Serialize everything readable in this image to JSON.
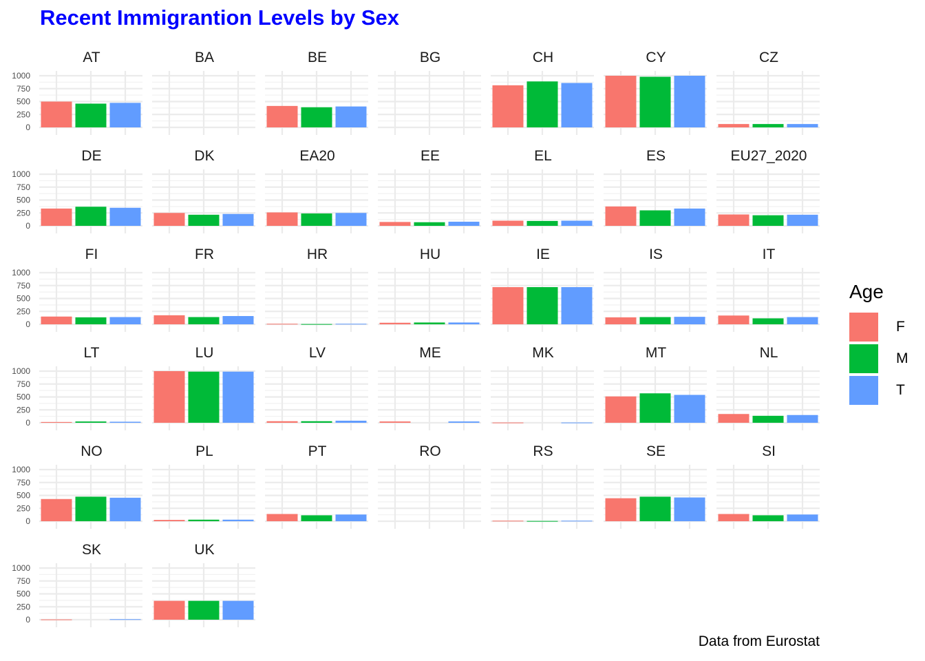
{
  "title": "Recent Immigrantion Levels by Sex",
  "caption": "Data from Eurostat",
  "colors": {
    "F": "#F8766D",
    "M": "#00BA38",
    "T": "#619CFF",
    "title": "#0000ff",
    "grid": "#ebebeb"
  },
  "legend": {
    "title": "Age",
    "items": [
      {
        "key": "F",
        "label": "F"
      },
      {
        "key": "M",
        "label": "M"
      },
      {
        "key": "T",
        "label": "T"
      }
    ]
  },
  "chart_data": {
    "type": "bar",
    "facet": "small-multiples",
    "categories": [
      "F",
      "M",
      "T"
    ],
    "legend_title": "Age",
    "ylim": [
      0,
      1000
    ],
    "yticks": [
      0,
      250,
      500,
      750,
      1000
    ],
    "grid": true,
    "legend_position": "right",
    "panels": [
      {
        "name": "AT",
        "values": [
          500,
          460,
          475
        ]
      },
      {
        "name": "BA",
        "values": [
          0,
          0,
          0
        ]
      },
      {
        "name": "BE",
        "values": [
          415,
          390,
          405
        ]
      },
      {
        "name": "BG",
        "values": [
          0,
          0,
          0
        ]
      },
      {
        "name": "CH",
        "values": [
          815,
          890,
          860
        ]
      },
      {
        "name": "CY",
        "values": [
          1000,
          980,
          1000
        ]
      },
      {
        "name": "CZ",
        "values": [
          65,
          65,
          65
        ]
      },
      {
        "name": "DE",
        "values": [
          335,
          370,
          350
        ]
      },
      {
        "name": "DK",
        "values": [
          250,
          215,
          230
        ]
      },
      {
        "name": "EA20",
        "values": [
          260,
          240,
          250
        ]
      },
      {
        "name": "EE",
        "values": [
          75,
          70,
          80
        ]
      },
      {
        "name": "EL",
        "values": [
          100,
          95,
          100
        ]
      },
      {
        "name": "ES",
        "values": [
          375,
          300,
          335
        ]
      },
      {
        "name": "EU27_2020",
        "values": [
          220,
          205,
          215
        ]
      },
      {
        "name": "FI",
        "values": [
          150,
          135,
          140
        ]
      },
      {
        "name": "FR",
        "values": [
          175,
          140,
          160
        ]
      },
      {
        "name": "HR",
        "values": [
          10,
          5,
          10
        ]
      },
      {
        "name": "HU",
        "values": [
          30,
          35,
          35
        ]
      },
      {
        "name": "IE",
        "values": [
          720,
          720,
          720
        ]
      },
      {
        "name": "IS",
        "values": [
          135,
          140,
          145
        ]
      },
      {
        "name": "IT",
        "values": [
          170,
          115,
          140
        ]
      },
      {
        "name": "LT",
        "values": [
          15,
          25,
          20
        ]
      },
      {
        "name": "LU",
        "values": [
          1000,
          990,
          990
        ]
      },
      {
        "name": "LV",
        "values": [
          30,
          30,
          40
        ]
      },
      {
        "name": "ME",
        "values": [
          25,
          0,
          25
        ]
      },
      {
        "name": "MK",
        "values": [
          5,
          0,
          5
        ]
      },
      {
        "name": "MT",
        "values": [
          510,
          570,
          540
        ]
      },
      {
        "name": "NL",
        "values": [
          170,
          135,
          150
        ]
      },
      {
        "name": "NO",
        "values": [
          430,
          475,
          455
        ]
      },
      {
        "name": "PL",
        "values": [
          25,
          30,
          30
        ]
      },
      {
        "name": "PT",
        "values": [
          140,
          115,
          130
        ]
      },
      {
        "name": "RO",
        "values": [
          0,
          0,
          0
        ]
      },
      {
        "name": "RS",
        "values": [
          10,
          5,
          10
        ]
      },
      {
        "name": "SE",
        "values": [
          445,
          475,
          460
        ]
      },
      {
        "name": "SI",
        "values": [
          140,
          115,
          130
        ]
      },
      {
        "name": "SK",
        "values": [
          5,
          0,
          10
        ]
      },
      {
        "name": "UK",
        "values": [
          365,
          365,
          365
        ]
      }
    ]
  }
}
